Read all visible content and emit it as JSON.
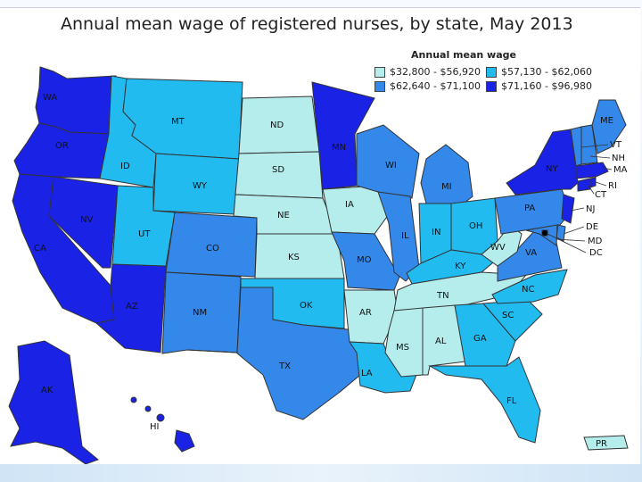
{
  "title": "Annual mean wage of registered nurses, by state, May 2013",
  "legend": {
    "title": "Annual mean wage",
    "items": [
      {
        "label": "$32,800 - $56,920",
        "color": "#b5ecec"
      },
      {
        "label": "$57,130 - $62,060",
        "color": "#22bbf0"
      },
      {
        "label": "$62,640 - $71,100",
        "color": "#3388ea"
      },
      {
        "label": "$71,160 - $96,980",
        "color": "#1a22e6"
      }
    ]
  },
  "states": [
    {
      "abbr": "WA",
      "tier": 3
    },
    {
      "abbr": "OR",
      "tier": 3
    },
    {
      "abbr": "CA",
      "tier": 3
    },
    {
      "abbr": "NV",
      "tier": 3
    },
    {
      "abbr": "AZ",
      "tier": 3
    },
    {
      "abbr": "ID",
      "tier": 1
    },
    {
      "abbr": "MT",
      "tier": 1
    },
    {
      "abbr": "WY",
      "tier": 1
    },
    {
      "abbr": "UT",
      "tier": 1
    },
    {
      "abbr": "CO",
      "tier": 2
    },
    {
      "abbr": "NM",
      "tier": 2
    },
    {
      "abbr": "ND",
      "tier": 0
    },
    {
      "abbr": "SD",
      "tier": 0
    },
    {
      "abbr": "NE",
      "tier": 0
    },
    {
      "abbr": "KS",
      "tier": 0
    },
    {
      "abbr": "OK",
      "tier": 1
    },
    {
      "abbr": "TX",
      "tier": 2
    },
    {
      "abbr": "MN",
      "tier": 3
    },
    {
      "abbr": "IA",
      "tier": 0
    },
    {
      "abbr": "MO",
      "tier": 2
    },
    {
      "abbr": "AR",
      "tier": 0
    },
    {
      "abbr": "LA",
      "tier": 1
    },
    {
      "abbr": "WI",
      "tier": 2
    },
    {
      "abbr": "IL",
      "tier": 2
    },
    {
      "abbr": "MI",
      "tier": 2
    },
    {
      "abbr": "IN",
      "tier": 1
    },
    {
      "abbr": "OH",
      "tier": 1
    },
    {
      "abbr": "KY",
      "tier": 1
    },
    {
      "abbr": "TN",
      "tier": 0
    },
    {
      "abbr": "MS",
      "tier": 0
    },
    {
      "abbr": "AL",
      "tier": 0
    },
    {
      "abbr": "GA",
      "tier": 1
    },
    {
      "abbr": "FL",
      "tier": 1
    },
    {
      "abbr": "SC",
      "tier": 1
    },
    {
      "abbr": "NC",
      "tier": 1
    },
    {
      "abbr": "VA",
      "tier": 2
    },
    {
      "abbr": "WV",
      "tier": 0
    },
    {
      "abbr": "PA",
      "tier": 2
    },
    {
      "abbr": "NY",
      "tier": 3
    },
    {
      "abbr": "NJ",
      "tier": 3
    },
    {
      "abbr": "DE",
      "tier": 2
    },
    {
      "abbr": "MD",
      "tier": 2
    },
    {
      "abbr": "DC",
      "tier": 3
    },
    {
      "abbr": "CT",
      "tier": 3
    },
    {
      "abbr": "RI",
      "tier": 3
    },
    {
      "abbr": "MA",
      "tier": 3
    },
    {
      "abbr": "VT",
      "tier": 2
    },
    {
      "abbr": "NH",
      "tier": 2
    },
    {
      "abbr": "ME",
      "tier": 2
    },
    {
      "abbr": "AK",
      "tier": 3
    },
    {
      "abbr": "HI",
      "tier": 3
    },
    {
      "abbr": "PR",
      "tier": 0
    }
  ]
}
